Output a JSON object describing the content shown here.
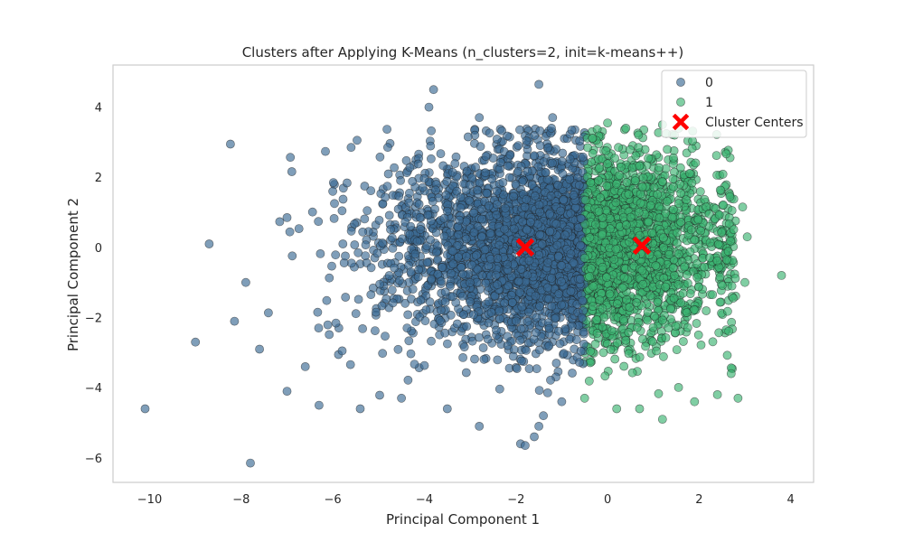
{
  "chart_data": {
    "type": "scatter",
    "title": "Clusters after Applying K-Means (n_clusters=2, init=k-means++)",
    "xlabel": "Principal Component 1",
    "ylabel": "Principal Component 2",
    "xlim": [
      -10.8,
      4.5
    ],
    "ylim": [
      -6.7,
      5.2
    ],
    "xticks": [
      -10,
      -8,
      -6,
      -4,
      -2,
      0,
      2,
      4
    ],
    "yticks": [
      -6,
      -4,
      -2,
      0,
      2,
      4
    ],
    "grid": false,
    "legend_position": "top-right",
    "decision_boundary_x": -0.5,
    "series": [
      {
        "name": "0",
        "color": "#3b6a94",
        "description_of_spread": "dense mass x from about -5 to -0.5, y from about -4 to 3; sparse outliers to x=-10",
        "outliers": [
          [
            -10.1,
            -4.6
          ],
          [
            -9.0,
            -2.7
          ],
          [
            -8.7,
            0.1
          ],
          [
            -7.9,
            -1.0
          ],
          [
            -7.8,
            -6.15
          ],
          [
            -7.6,
            -2.9
          ],
          [
            -7.0,
            0.85
          ],
          [
            -7.0,
            -4.1
          ],
          [
            -6.6,
            -3.4
          ],
          [
            -6.3,
            -4.5
          ],
          [
            -6.0,
            1.6
          ],
          [
            -5.6,
            2.85
          ],
          [
            -5.4,
            -4.6
          ],
          [
            -4.8,
            2.85
          ],
          [
            -4.5,
            -4.3
          ],
          [
            -3.8,
            4.5
          ],
          [
            -3.9,
            4.0
          ],
          [
            -3.5,
            -4.6
          ],
          [
            -2.8,
            3.7
          ],
          [
            -2.8,
            -5.1
          ],
          [
            -1.5,
            4.65
          ],
          [
            -1.9,
            -5.6
          ],
          [
            -1.8,
            -5.65
          ],
          [
            -1.6,
            -5.4
          ],
          [
            -1.2,
            3.7
          ],
          [
            -1.5,
            -5.1
          ],
          [
            -1.4,
            -4.8
          ],
          [
            -1.0,
            -4.4
          ]
        ]
      },
      {
        "name": "1",
        "color": "#3cb371",
        "description_of_spread": "dense mass x from -0.5 to about 2.5, y from about -4.5 to 3.5; sparse outliers to x=3.8",
        "outliers": [
          [
            3.8,
            -0.8
          ],
          [
            3.05,
            0.3
          ],
          [
            3.0,
            -1.0
          ],
          [
            2.95,
            1.15
          ],
          [
            2.85,
            -4.3
          ],
          [
            2.7,
            -3.6
          ],
          [
            2.4,
            -4.2
          ],
          [
            1.9,
            -4.4
          ],
          [
            1.2,
            -4.9
          ],
          [
            0.7,
            -4.6
          ],
          [
            0.2,
            -4.6
          ],
          [
            -0.5,
            -4.3
          ],
          [
            0.4,
            3.4
          ],
          [
            0.0,
            3.55
          ],
          [
            1.2,
            3.5
          ]
        ]
      },
      {
        "name": "Cluster Centers",
        "color": "#ff0000",
        "marker": "X",
        "points": [
          [
            -1.8,
            0.0
          ],
          [
            0.75,
            0.05
          ]
        ]
      }
    ],
    "legend": [
      {
        "label": "0",
        "color": "#3b6a94",
        "marker": "circle"
      },
      {
        "label": "1",
        "color": "#3cb371",
        "marker": "circle"
      },
      {
        "label": "Cluster Centers",
        "color": "#ff0000",
        "marker": "X"
      }
    ]
  }
}
